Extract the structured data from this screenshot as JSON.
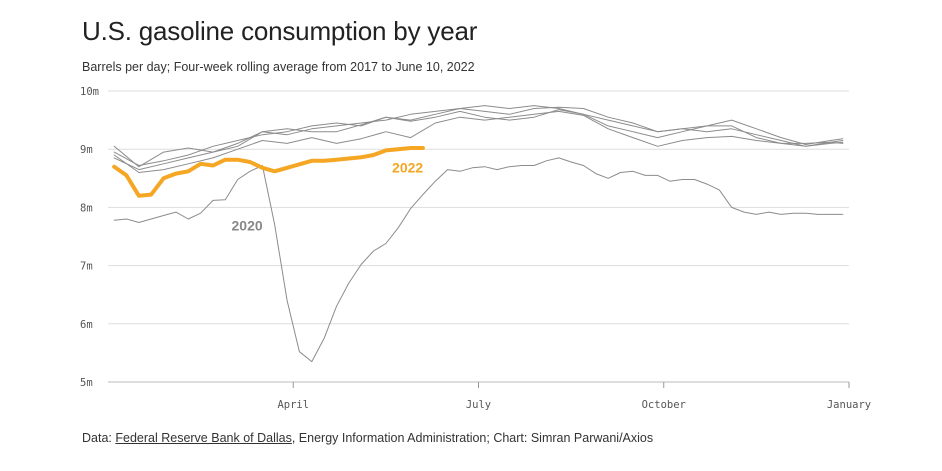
{
  "title": "U.S. gasoline consumption by year",
  "subtitle": "Barrels per day; Four-week rolling average from 2017 to June 10, 2022",
  "footer": {
    "prefix": "Data: ",
    "link_text": "Federal Reserve Bank of Dallas",
    "suffix": ", Energy Information Administration; Chart: Simran Parwani/Axios"
  },
  "colors": {
    "highlight": "#f5a623",
    "other": "#8c8c8c",
    "grid": "#dddddd",
    "label2020": "#888888"
  },
  "chart_data": {
    "type": "line",
    "x_unit": "month (1 = Jan 1)",
    "xlim": [
      1,
      13
    ],
    "ylim": [
      5,
      10
    ],
    "y_ticks": [
      5,
      6,
      7,
      8,
      9,
      10
    ],
    "y_tick_labels": [
      "5m",
      "6m",
      "7m",
      "8m",
      "9m",
      "10m"
    ],
    "x_ticks": [
      4,
      7,
      10,
      13
    ],
    "x_tick_labels": [
      "April",
      "July",
      "October",
      "January"
    ],
    "grid": true,
    "annotations": [
      {
        "text": "2022",
        "series": "2022",
        "x": 5.6,
        "y": 8.6
      },
      {
        "text": "2020",
        "series": "2020",
        "x": 3.0,
        "y": 7.6
      }
    ],
    "series": [
      {
        "name": "2022",
        "highlight": true,
        "x": [
          1.1,
          1.3,
          1.5,
          1.7,
          1.9,
          2.1,
          2.3,
          2.5,
          2.7,
          2.9,
          3.1,
          3.3,
          3.5,
          3.7,
          3.9,
          4.1,
          4.3,
          4.5,
          4.7,
          4.9,
          5.1,
          5.3,
          5.5,
          5.7,
          5.9,
          6.1
        ],
        "y": [
          8.7,
          8.55,
          8.2,
          8.22,
          8.5,
          8.58,
          8.62,
          8.75,
          8.72,
          8.82,
          8.82,
          8.78,
          8.68,
          8.62,
          8.68,
          8.74,
          8.8,
          8.8,
          8.82,
          8.84,
          8.86,
          8.9,
          8.98,
          9.0,
          9.02,
          9.02
        ]
      },
      {
        "name": "2020",
        "x": [
          1.1,
          1.3,
          1.5,
          1.7,
          1.9,
          2.1,
          2.3,
          2.5,
          2.7,
          2.9,
          3.1,
          3.3,
          3.5,
          3.7,
          3.9,
          4.1,
          4.3,
          4.5,
          4.7,
          4.9,
          5.1,
          5.3,
          5.5,
          5.7,
          5.9,
          6.1,
          6.3,
          6.5,
          6.7,
          6.9,
          7.1,
          7.3,
          7.5,
          7.7,
          7.9,
          8.1,
          8.3,
          8.5,
          8.7,
          8.9,
          9.1,
          9.3,
          9.5,
          9.7,
          9.9,
          10.1,
          10.3,
          10.5,
          10.7,
          10.9,
          11.1,
          11.3,
          11.5,
          11.7,
          11.9,
          12.1,
          12.3,
          12.5,
          12.7,
          12.9
        ],
        "y": [
          7.78,
          7.8,
          7.74,
          7.8,
          7.86,
          7.92,
          7.8,
          7.9,
          8.12,
          8.13,
          8.48,
          8.62,
          8.72,
          7.7,
          6.4,
          5.52,
          5.35,
          5.75,
          6.3,
          6.7,
          7.02,
          7.25,
          7.38,
          7.65,
          7.98,
          8.22,
          8.45,
          8.65,
          8.62,
          8.68,
          8.7,
          8.65,
          8.7,
          8.72,
          8.72,
          8.8,
          8.85,
          8.78,
          8.72,
          8.58,
          8.5,
          8.6,
          8.62,
          8.55,
          8.55,
          8.45,
          8.48,
          8.48,
          8.4,
          8.3,
          8.0,
          7.92,
          7.88,
          7.92,
          7.88,
          7.9,
          7.9,
          7.88,
          7.88,
          7.88
        ]
      },
      {
        "name": "",
        "x": [
          1.1,
          1.5,
          1.9,
          2.3,
          2.7,
          3.1,
          3.5,
          3.9,
          4.3,
          4.7,
          5.1,
          5.5,
          5.9,
          6.3,
          6.7,
          7.1,
          7.5,
          7.9,
          8.3,
          8.7,
          9.1,
          9.5,
          9.9,
          10.3,
          10.7,
          11.1,
          11.5,
          11.9,
          12.3,
          12.7,
          12.9
        ],
        "y": [
          9.05,
          8.7,
          8.95,
          9.02,
          8.95,
          9.1,
          9.3,
          9.25,
          9.35,
          9.4,
          9.45,
          9.5,
          9.6,
          9.65,
          9.7,
          9.65,
          9.6,
          9.7,
          9.72,
          9.7,
          9.55,
          9.45,
          9.3,
          9.35,
          9.4,
          9.4,
          9.2,
          9.1,
          9.1,
          9.12,
          9.15
        ]
      },
      {
        "name": "",
        "x": [
          1.1,
          1.5,
          1.9,
          2.3,
          2.7,
          3.1,
          3.5,
          3.9,
          4.3,
          4.7,
          5.1,
          5.5,
          5.9,
          6.3,
          6.7,
          7.1,
          7.5,
          7.9,
          8.3,
          8.7,
          9.1,
          9.5,
          9.9,
          10.3,
          10.7,
          11.1,
          11.5,
          11.9,
          12.3,
          12.7,
          12.9
        ],
        "y": [
          8.95,
          8.72,
          8.8,
          8.9,
          9.05,
          9.15,
          9.25,
          9.3,
          9.4,
          9.45,
          9.4,
          9.55,
          9.5,
          9.6,
          9.7,
          9.75,
          9.7,
          9.75,
          9.7,
          9.6,
          9.5,
          9.4,
          9.3,
          9.35,
          9.3,
          9.35,
          9.25,
          9.15,
          9.05,
          9.1,
          9.12
        ]
      },
      {
        "name": "",
        "x": [
          1.1,
          1.5,
          1.9,
          2.3,
          2.7,
          3.1,
          3.5,
          3.9,
          4.3,
          4.7,
          5.1,
          5.5,
          5.9,
          6.3,
          6.7,
          7.1,
          7.5,
          7.9,
          8.3,
          8.7,
          9.1,
          9.5,
          9.9,
          10.3,
          10.7,
          11.1,
          11.5,
          11.9,
          12.3,
          12.7,
          12.9
        ],
        "y": [
          8.85,
          8.65,
          8.75,
          8.85,
          8.95,
          9.05,
          9.3,
          9.35,
          9.3,
          9.3,
          9.42,
          9.55,
          9.48,
          9.55,
          9.65,
          9.55,
          9.5,
          9.55,
          9.68,
          9.6,
          9.4,
          9.3,
          9.2,
          9.3,
          9.4,
          9.5,
          9.35,
          9.2,
          9.08,
          9.15,
          9.18
        ]
      },
      {
        "name": "",
        "x": [
          1.1,
          1.5,
          1.9,
          2.3,
          2.7,
          3.1,
          3.5,
          3.9,
          4.3,
          4.7,
          5.1,
          5.5,
          5.9,
          6.3,
          6.7,
          7.1,
          7.5,
          7.9,
          8.3,
          8.7,
          9.1,
          9.5,
          9.9,
          10.3,
          10.7,
          11.1,
          11.5,
          11.9,
          12.3,
          12.7,
          12.9
        ],
        "y": [
          8.9,
          8.6,
          8.65,
          8.75,
          8.85,
          9.0,
          9.15,
          9.1,
          9.2,
          9.1,
          9.18,
          9.3,
          9.2,
          9.45,
          9.55,
          9.5,
          9.55,
          9.6,
          9.65,
          9.58,
          9.35,
          9.2,
          9.05,
          9.15,
          9.2,
          9.22,
          9.15,
          9.1,
          9.05,
          9.12,
          9.1
        ]
      }
    ]
  }
}
